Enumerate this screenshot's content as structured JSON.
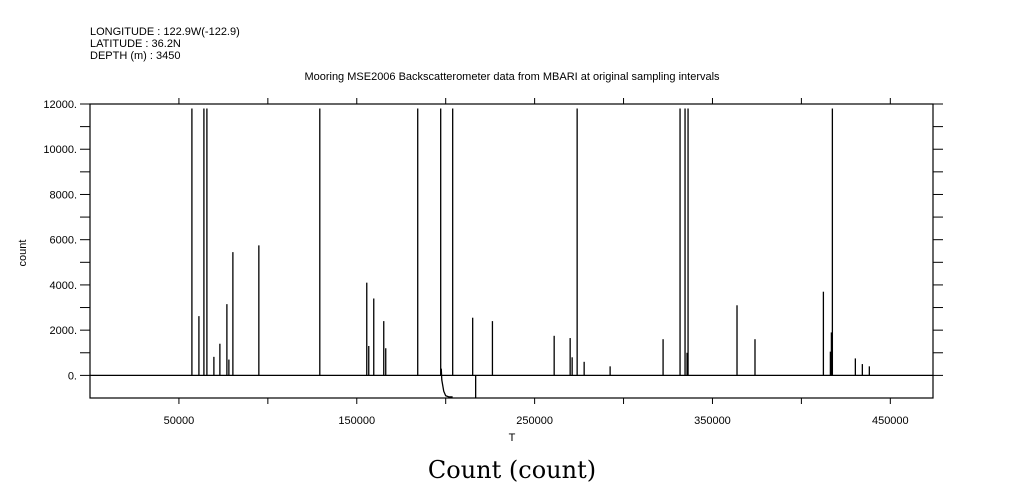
{
  "header": {
    "longitude": "LONGITUDE : 122.9W(-122.9)",
    "latitude": "LATITUDE : 36.2N",
    "depth": "DEPTH (m) : 3450"
  },
  "chart_data": {
    "type": "line",
    "title": "Mooring MSE2006 Backscatterometer data from MBARI at original sampling intervals",
    "xlabel": "T",
    "ylabel": "count",
    "bottom_title": "Count (count)",
    "xlim": [
      0,
      474000
    ],
    "ylim": [
      -1000,
      12000
    ],
    "grid": false,
    "xticks": [
      50000,
      100000,
      150000,
      200000,
      250000,
      300000,
      350000,
      400000,
      450000
    ],
    "xtick_labels": [
      "50000",
      "",
      "150000",
      "",
      "250000",
      "",
      "350000",
      "",
      "450000"
    ],
    "yticks": [
      0,
      1000,
      2000,
      3000,
      4000,
      5000,
      6000,
      7000,
      8000,
      9000,
      10000,
      11000,
      12000
    ],
    "ytick_labels": [
      "0.",
      "",
      "2000.",
      "",
      "4000.",
      "",
      "6000.",
      "",
      "8000.",
      "",
      "10000.",
      "",
      "12000."
    ],
    "baseline": 0,
    "spikes": [
      {
        "x": 57300,
        "y": 11800
      },
      {
        "x": 61240,
        "y": 2620
      },
      {
        "x": 64050,
        "y": 11800
      },
      {
        "x": 65730,
        "y": 11800
      },
      {
        "x": 69660,
        "y": 820
      },
      {
        "x": 73030,
        "y": 1400
      },
      {
        "x": 76970,
        "y": 3150
      },
      {
        "x": 78090,
        "y": 700
      },
      {
        "x": 80340,
        "y": 5450
      },
      {
        "x": 94940,
        "y": 5750
      },
      {
        "x": 129210,
        "y": 11800
      },
      {
        "x": 155620,
        "y": 4100
      },
      {
        "x": 156740,
        "y": 1300
      },
      {
        "x": 159550,
        "y": 3400
      },
      {
        "x": 165170,
        "y": 2400
      },
      {
        "x": 166290,
        "y": 1200
      },
      {
        "x": 184270,
        "y": 11800
      },
      {
        "x": 197190,
        "y": 11800
      },
      {
        "x": 203930,
        "y": 11800
      },
      {
        "x": 215170,
        "y": 2550
      },
      {
        "x": 216850,
        "y": -1000
      },
      {
        "x": 226280,
        "y": 2400
      },
      {
        "x": 260990,
        "y": 1750
      },
      {
        "x": 269980,
        "y": 1650
      },
      {
        "x": 271100,
        "y": 800
      },
      {
        "x": 273910,
        "y": 11800
      },
      {
        "x": 277850,
        "y": 600
      },
      {
        "x": 292450,
        "y": 400
      },
      {
        "x": 322230,
        "y": 1600
      },
      {
        "x": 331770,
        "y": 11800
      },
      {
        "x": 334580,
        "y": 11800
      },
      {
        "x": 335710,
        "y": 1000
      },
      {
        "x": 336270,
        "y": 11800
      },
      {
        "x": 363800,
        "y": 3100
      },
      {
        "x": 373910,
        "y": 1600
      },
      {
        "x": 412370,
        "y": 3700
      },
      {
        "x": 416300,
        "y": 1050
      },
      {
        "x": 416860,
        "y": 1900
      },
      {
        "x": 417420,
        "y": 11800
      },
      {
        "x": 430340,
        "y": 750
      },
      {
        "x": 434270,
        "y": 500
      },
      {
        "x": 438200,
        "y": 400
      }
    ],
    "dip": [
      {
        "x": 197500,
        "y": 300
      },
      {
        "x": 197800,
        "y": -200
      },
      {
        "x": 198900,
        "y": -700
      },
      {
        "x": 200000,
        "y": -900
      },
      {
        "x": 201700,
        "y": -950
      },
      {
        "x": 203900,
        "y": -950
      }
    ]
  }
}
